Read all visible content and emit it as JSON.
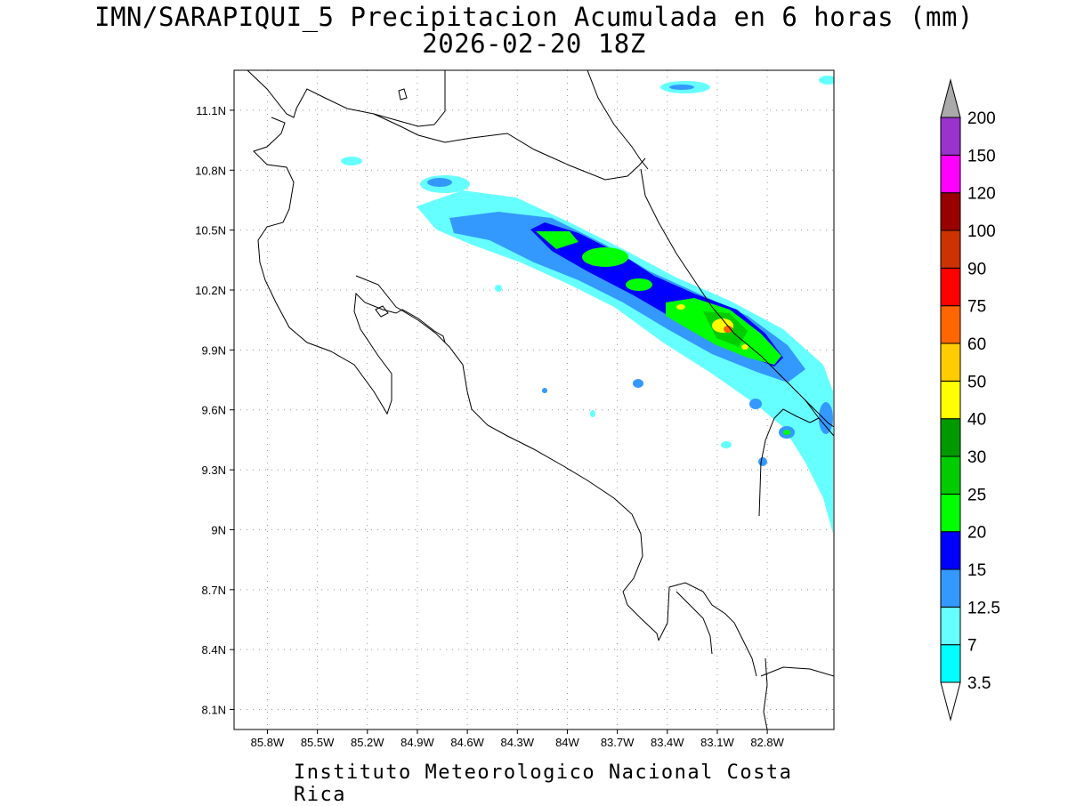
{
  "title_line1": "IMN/SARAPIQUI_5 Precipitacion Acumulada en 6 horas (mm)",
  "title_line2": "2026-02-20 18Z",
  "footer": "Instituto Meteorologico Nacional Costa Rica",
  "map": {
    "lon_range": [
      -86.0,
      -82.4
    ],
    "lat_range": [
      8.0,
      11.3
    ],
    "lon_ticks": [
      {
        "value": -85.8,
        "label": "85.8W"
      },
      {
        "value": -85.5,
        "label": "85.5W"
      },
      {
        "value": -85.2,
        "label": "85.2W"
      },
      {
        "value": -84.9,
        "label": "84.9W"
      },
      {
        "value": -84.6,
        "label": "84.6W"
      },
      {
        "value": -84.3,
        "label": "84.3W"
      },
      {
        "value": -84.0,
        "label": "84W"
      },
      {
        "value": -83.7,
        "label": "83.7W"
      },
      {
        "value": -83.4,
        "label": "83.4W"
      },
      {
        "value": -83.1,
        "label": "83.1W"
      },
      {
        "value": -82.8,
        "label": "82.8W"
      }
    ],
    "lat_ticks": [
      {
        "value": 11.1,
        "label": "11.1N"
      },
      {
        "value": 10.8,
        "label": "10.8N"
      },
      {
        "value": 10.5,
        "label": "10.5N"
      },
      {
        "value": 10.2,
        "label": "10.2N"
      },
      {
        "value": 9.9,
        "label": "9.9N"
      },
      {
        "value": 9.6,
        "label": "9.6N"
      },
      {
        "value": 9.3,
        "label": "9.3N"
      },
      {
        "value": 9.0,
        "label": "9N"
      },
      {
        "value": 8.7,
        "label": "8.7N"
      },
      {
        "value": 8.4,
        "label": "8.4N"
      },
      {
        "value": 8.1,
        "label": "8.1N"
      }
    ]
  },
  "colorbar": {
    "levels": [
      "3.5",
      "7",
      "12.5",
      "15",
      "20",
      "25",
      "30",
      "40",
      "50",
      "60",
      "75",
      "90",
      "100",
      "120",
      "150",
      "200"
    ],
    "colors": [
      "#00ffff",
      "#66ffff",
      "#3399ff",
      "#0000ff",
      "#00ff00",
      "#00cc00",
      "#009900",
      "#ffff00",
      "#ffcc00",
      "#ff6600",
      "#ff0000",
      "#cc3300",
      "#990000",
      "#ff00ff",
      "#9933cc",
      "#f2f2f2"
    ],
    "lower_arrow_color": "#ffffff",
    "upper_arrow_color": "#aaaaaa"
  }
}
